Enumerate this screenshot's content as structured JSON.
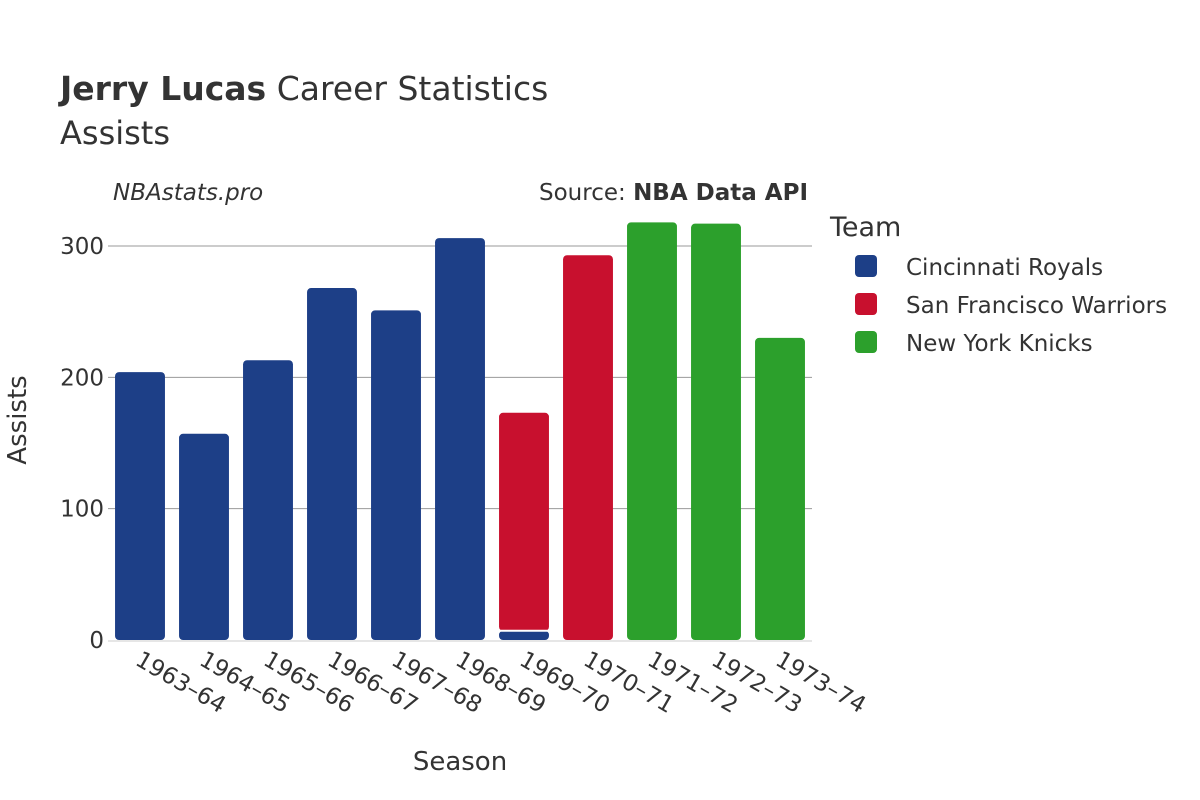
{
  "title": {
    "bold": "Jerry Lucas",
    "rest": " Career Statistics",
    "subtitle": "Assists"
  },
  "watermark": "NBAstats.pro",
  "source": {
    "prefix": "Source: ",
    "name": "NBA Data API"
  },
  "legend": {
    "title": "Team",
    "position": "right",
    "items": [
      {
        "label": "Cincinnati Royals",
        "color": "#1d3f87"
      },
      {
        "label": "San Francisco Warriors",
        "color": "#c8102e"
      },
      {
        "label": "New York Knicks",
        "color": "#2ca02c"
      }
    ]
  },
  "chart_data": {
    "type": "bar",
    "stacked": true,
    "xlabel": "Season",
    "ylabel": "Assists",
    "ylim": [
      0,
      320
    ],
    "yticks": [
      0,
      100,
      200,
      300
    ],
    "grid": true,
    "categories": [
      "1963–64",
      "1964–65",
      "1965–66",
      "1966–67",
      "1967–68",
      "1968–69",
      "1969–70",
      "1970–71",
      "1971–72",
      "1972–73",
      "1973–74"
    ],
    "series": [
      {
        "name": "Cincinnati Royals",
        "color": "#1d3f87",
        "values": [
          204,
          157,
          213,
          268,
          251,
          306,
          7,
          0,
          0,
          0,
          0
        ]
      },
      {
        "name": "San Francisco Warriors",
        "color": "#c8102e",
        "values": [
          0,
          0,
          0,
          0,
          0,
          0,
          166,
          293,
          0,
          0,
          0
        ]
      },
      {
        "name": "New York Knicks",
        "color": "#2ca02c",
        "values": [
          0,
          0,
          0,
          0,
          0,
          0,
          0,
          0,
          318,
          317,
          230
        ]
      }
    ]
  }
}
